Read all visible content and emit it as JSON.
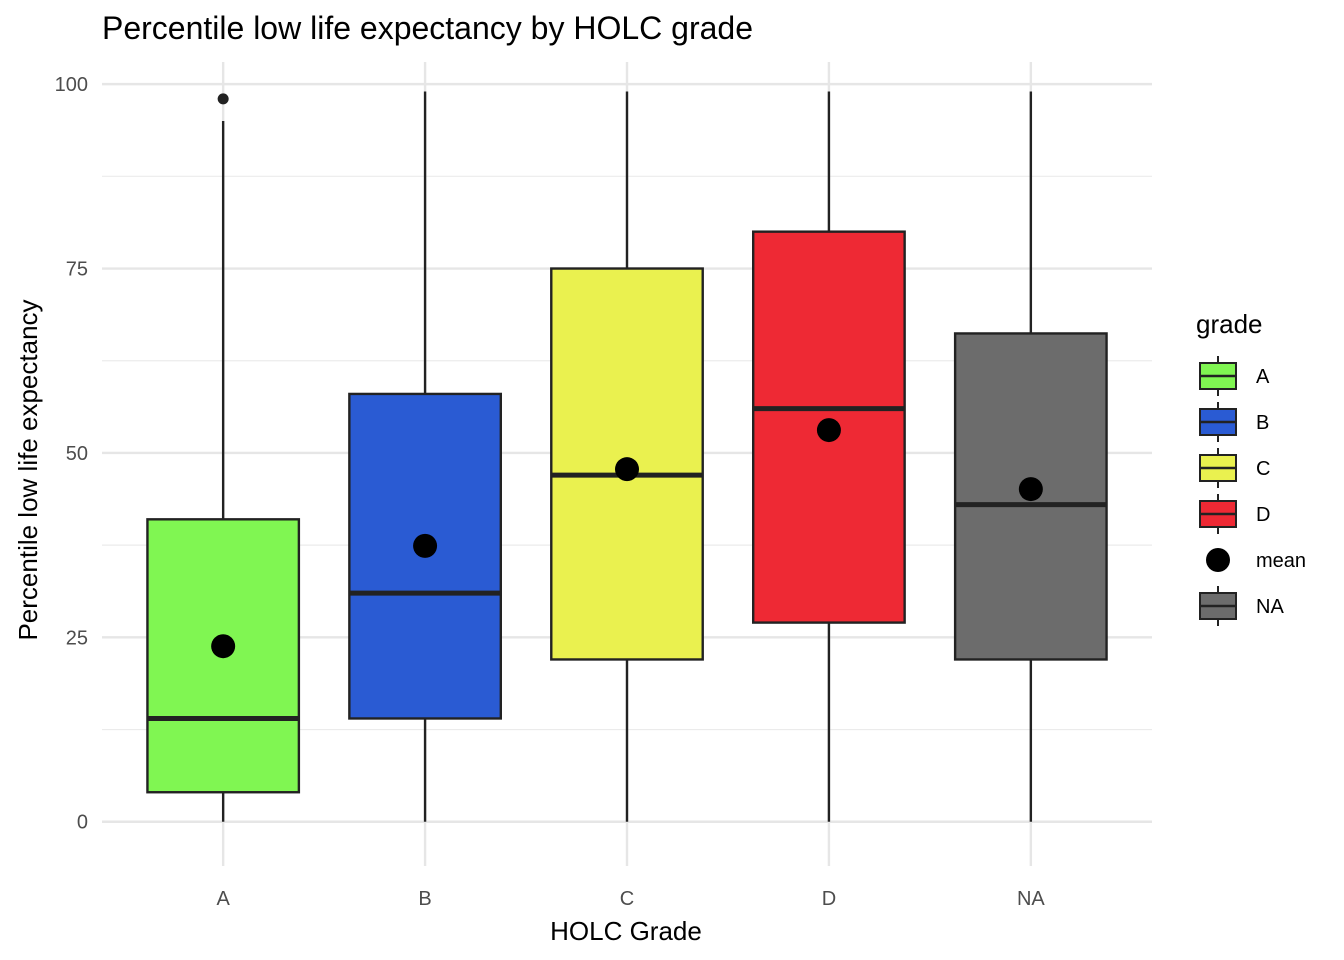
{
  "chart_data": {
    "type": "boxplot",
    "title": "Percentile low life expectancy by HOLC grade",
    "xlabel": "HOLC Grade",
    "ylabel": "Percentile low life expectancy",
    "ylim": [
      -6,
      103
    ],
    "yticks": [
      0,
      25,
      50,
      75,
      100
    ],
    "grid": true,
    "legend": {
      "title": "grade",
      "position": "right",
      "entries": [
        {
          "label": "A",
          "kind": "box",
          "color": "#80F652"
        },
        {
          "label": "B",
          "kind": "box",
          "color": "#2A5BD3"
        },
        {
          "label": "C",
          "kind": "box",
          "color": "#EAF14F"
        },
        {
          "label": "D",
          "kind": "box",
          "color": "#EE2934"
        },
        {
          "label": "mean",
          "kind": "point",
          "color": "#000000"
        },
        {
          "label": "NA",
          "kind": "box",
          "color": "#6C6C6C"
        }
      ]
    },
    "categories": [
      "A",
      "B",
      "C",
      "D",
      "NA"
    ],
    "boxes": [
      {
        "category": "A",
        "color": "#80F652",
        "min": 0,
        "q1": 4,
        "median": 14,
        "q3": 41,
        "max": 95,
        "mean": 23.8,
        "outliers": [
          98
        ]
      },
      {
        "category": "B",
        "color": "#2A5BD3",
        "min": 0,
        "q1": 14,
        "median": 31,
        "q3": 58,
        "max": 99,
        "mean": 37.4,
        "outliers": []
      },
      {
        "category": "C",
        "color": "#EAF14F",
        "min": 0,
        "q1": 22,
        "median": 47,
        "q3": 75,
        "max": 99,
        "mean": 47.8,
        "outliers": []
      },
      {
        "category": "D",
        "color": "#EE2934",
        "min": 0,
        "q1": 27,
        "median": 56,
        "q3": 80,
        "max": 99,
        "mean": 53.1,
        "outliers": []
      },
      {
        "category": "NA",
        "color": "#6C6C6C",
        "min": 0,
        "q1": 22,
        "median": 43,
        "q3": 66.2,
        "max": 99,
        "mean": 45.1,
        "outliers": []
      }
    ]
  }
}
